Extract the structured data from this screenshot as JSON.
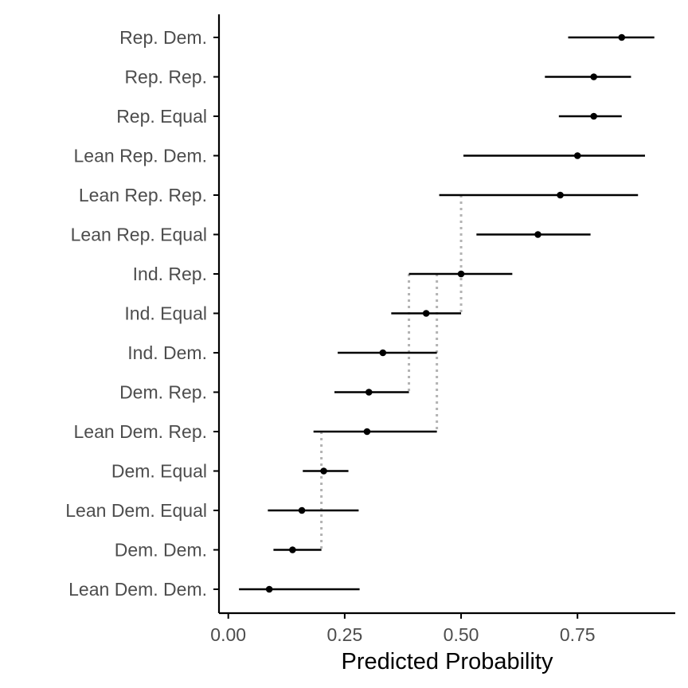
{
  "chart_data": {
    "type": "scatter",
    "subtype": "dot-and-whisker",
    "title": "",
    "xlabel": "Predicted Probability",
    "ylabel": "",
    "xlim": [
      -0.02,
      0.96
    ],
    "x_ticks": [
      {
        "value": 0.0,
        "label": "0.00"
      },
      {
        "value": 0.25,
        "label": "0.25"
      },
      {
        "value": 0.5,
        "label": "0.50"
      },
      {
        "value": 0.75,
        "label": "0.75"
      }
    ],
    "grid": false,
    "legend": "none",
    "colors": {
      "point": "#000000",
      "interval": "#000000",
      "connector": "#b3b3b3",
      "axis": "#000000"
    },
    "points": [
      {
        "label": "Rep. Dem.",
        "estimate": 0.845,
        "lower": 0.73,
        "upper": 0.915
      },
      {
        "label": "Rep. Rep.",
        "estimate": 0.785,
        "lower": 0.68,
        "upper": 0.865
      },
      {
        "label": "Rep. Equal",
        "estimate": 0.785,
        "lower": 0.71,
        "upper": 0.845
      },
      {
        "label": "Lean Rep. Dem.",
        "estimate": 0.75,
        "lower": 0.505,
        "upper": 0.895
      },
      {
        "label": "Lean Rep. Rep.",
        "estimate": 0.713,
        "lower": 0.453,
        "upper": 0.88
      },
      {
        "label": "Lean Rep. Equal",
        "estimate": 0.665,
        "lower": 0.533,
        "upper": 0.778
      },
      {
        "label": "Ind. Rep.",
        "estimate": 0.5,
        "lower": 0.388,
        "upper": 0.61
      },
      {
        "label": "Ind. Equal",
        "estimate": 0.425,
        "lower": 0.35,
        "upper": 0.5
      },
      {
        "label": "Ind. Dem.",
        "estimate": 0.332,
        "lower": 0.235,
        "upper": 0.448
      },
      {
        "label": "Dem. Rep.",
        "estimate": 0.302,
        "lower": 0.228,
        "upper": 0.388
      },
      {
        "label": "Lean Dem. Rep.",
        "estimate": 0.298,
        "lower": 0.183,
        "upper": 0.448
      },
      {
        "label": "Dem. Equal",
        "estimate": 0.205,
        "lower": 0.16,
        "upper": 0.258
      },
      {
        "label": "Lean Dem. Equal",
        "estimate": 0.158,
        "lower": 0.085,
        "upper": 0.28
      },
      {
        "label": "Dem. Dem.",
        "estimate": 0.138,
        "lower": 0.097,
        "upper": 0.2
      },
      {
        "label": "Lean Dem. Dem.",
        "estimate": 0.088,
        "lower": 0.023,
        "upper": 0.282
      }
    ],
    "connectors": [
      {
        "x": 0.5,
        "from": "Lean Rep. Rep.",
        "to": "Ind. Equal"
      },
      {
        "x": 0.448,
        "from": "Ind. Rep.",
        "to": "Lean Dem. Rep."
      },
      {
        "x": 0.388,
        "from": "Ind. Rep.",
        "to": "Dem. Rep."
      },
      {
        "x": 0.2,
        "from": "Lean Dem. Rep.",
        "to": "Dem. Dem."
      }
    ]
  }
}
